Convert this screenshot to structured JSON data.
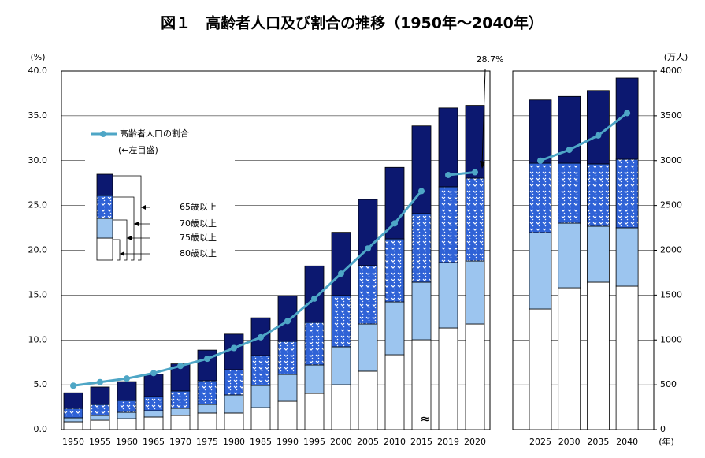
{
  "chart_data": {
    "type": "bar",
    "title": "図１　高齢者人口及び割合の推移（1950年～2040年）",
    "y_unit": "(%)",
    "y2_unit": "(万人)",
    "x_unit": "(年)",
    "categories": [
      "1950",
      "1955",
      "1960",
      "1965",
      "1970",
      "1975",
      "1980",
      "1985",
      "1990",
      "1995",
      "2000",
      "2005",
      "2010",
      "2015",
      "2019",
      "2020",
      "2025",
      "2030",
      "2035",
      "2040"
    ],
    "ylim": [
      0,
      40
    ],
    "yticks": [
      {
        "value": 0,
        "label": "0.0"
      },
      {
        "value": 5,
        "label": "5.0"
      },
      {
        "value": 10,
        "label": "10.0"
      },
      {
        "value": 15,
        "label": "15.0"
      },
      {
        "value": 20,
        "label": "20.0"
      },
      {
        "value": 25,
        "label": "25.0"
      },
      {
        "value": 30,
        "label": "30.0"
      },
      {
        "value": 35,
        "label": "35.0"
      },
      {
        "value": 40,
        "label": "40.0"
      }
    ],
    "y2lim": [
      0,
      4000
    ],
    "y2ticks": [
      0,
      500,
      1000,
      1500,
      2000,
      2500,
      3000,
      3500,
      4000
    ],
    "grid": true,
    "series": [
      {
        "name": "80歳以上",
        "color": "#ffffff",
        "axis": "y2",
        "values": [
          88,
          105,
          123,
          141,
          158,
          185,
          185,
          246,
          316,
          404,
          501,
          651,
          835,
          1002,
          1134,
          1178,
          1345,
          1582,
          1644,
          1600
        ]
      },
      {
        "name": "75歳以上",
        "color": "#9cc5ef",
        "axis": "y2",
        "values": [
          44,
          53,
          70,
          70,
          79,
          96,
          202,
          246,
          299,
          317,
          422,
          527,
          589,
          642,
          730,
          703,
          853,
          721,
          624,
          651
        ]
      },
      {
        "name": "70歳以上",
        "color": "#2f62d6",
        "axis": "y2",
        "pattern": true,
        "values": [
          105,
          123,
          132,
          158,
          194,
          264,
          281,
          334,
          370,
          475,
          572,
          651,
          703,
          765,
          844,
          923,
          773,
          668,
          695,
          764
        ]
      },
      {
        "name": "65歳以上",
        "color": "#0c1870",
        "axis": "y2",
        "values": [
          174,
          194,
          210,
          249,
          302,
          342,
          397,
          421,
          504,
          630,
          706,
          738,
          798,
          978,
          880,
          813,
          706,
          745,
          819,
          906
        ]
      },
      {
        "name": "高齢者人口の割合",
        "type": "line",
        "color": "#4ea6c6",
        "axis": "y",
        "values": [
          4.9,
          5.3,
          5.7,
          6.3,
          7.1,
          7.9,
          9.1,
          10.3,
          12.1,
          14.6,
          17.4,
          20.2,
          23.0,
          26.6,
          28.4,
          28.7,
          30.0,
          31.2,
          32.8,
          35.3
        ]
      }
    ],
    "line_legend_note": "(←左目盛)",
    "annotation": "28.7%"
  }
}
